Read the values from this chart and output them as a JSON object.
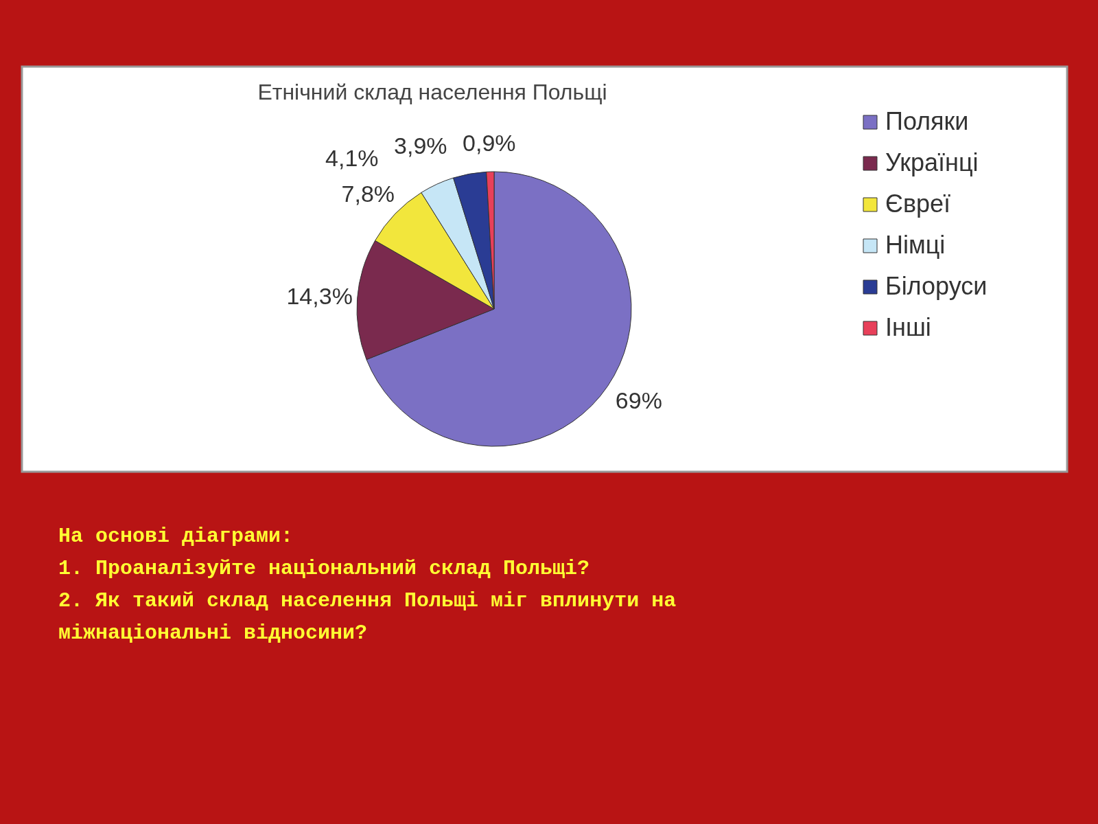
{
  "chart_data": {
    "type": "pie",
    "title": "Етнічний склад населення Польщі",
    "categories": [
      "Поляки",
      "Українці",
      "Євреї",
      "Німці",
      "Білоруси",
      "Інші"
    ],
    "values": [
      69,
      14.3,
      7.8,
      4.1,
      3.9,
      0.9
    ],
    "value_labels": [
      "69%",
      "14,3%",
      "7,8%",
      "4,1%",
      "3,9%",
      "0,9%"
    ],
    "colors": [
      "#7b70c4",
      "#7a2a4e",
      "#f2e63c",
      "#c6e6f6",
      "#2a3c94",
      "#e8405a"
    ],
    "legend": "right",
    "annotations": [
      "На основі діаграми:",
      "1. Проаналізуйте національний склад Польщі?",
      "2. Як такий склад населення Польщі міг вплинути на",
      "   міжнаціональні відносини?"
    ]
  }
}
